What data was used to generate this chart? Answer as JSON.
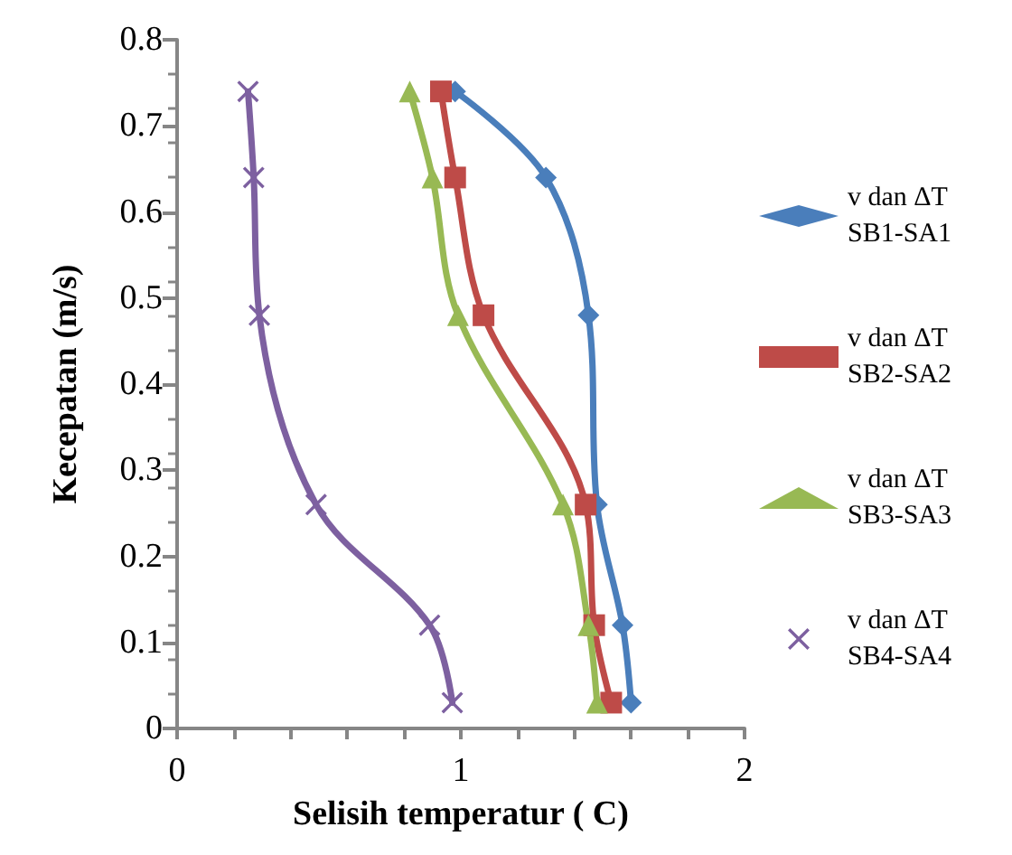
{
  "chart_data": {
    "type": "line",
    "xlabel": "Selisih temperatur ( C)",
    "ylabel": "Kecepatan (m/s)",
    "xlim": [
      0,
      2
    ],
    "xticks": [
      0,
      {
        "value": 0.2,
        "label": null
      },
      {
        "value": 0.4,
        "label": null
      },
      {
        "value": 0.6,
        "label": null
      },
      {
        "value": 0.8,
        "label": null
      },
      1,
      {
        "value": 1.2,
        "label": null
      },
      {
        "value": 1.4,
        "label": null
      },
      {
        "value": 1.6,
        "label": null
      },
      {
        "value": 1.8,
        "label": null
      },
      2
    ],
    "ylim": [
      0,
      0.8
    ],
    "yticks": [
      0,
      0.1,
      0.2,
      0.3,
      0.4,
      0.5,
      0.6,
      0.7,
      0.8
    ],
    "grid": false,
    "legend": "right",
    "series": [
      {
        "name": "v dan ΔT SB1-SA1",
        "color": "#4a7ebb",
        "marker": "diamond",
        "x": [
          0.98,
          1.3,
          1.45,
          1.48,
          1.57,
          1.6
        ],
        "values": [
          0.74,
          0.64,
          0.48,
          0.26,
          0.12,
          0.03
        ]
      },
      {
        "name": "v dan ΔT SB2-SA2",
        "color": "#be4b48",
        "marker": "square",
        "x": [
          0.93,
          0.98,
          1.08,
          1.44,
          1.47,
          1.53
        ],
        "values": [
          0.74,
          0.64,
          0.48,
          0.26,
          0.12,
          0.03
        ]
      },
      {
        "name": "v dan ΔT SB3-SA3",
        "color": "#98b954",
        "marker": "triangle",
        "x": [
          0.82,
          0.9,
          0.99,
          1.36,
          1.45,
          1.48
        ],
        "values": [
          0.74,
          0.64,
          0.48,
          0.26,
          0.12,
          0.03
        ]
      },
      {
        "name": "v dan ΔT SB4-SA4",
        "color": "#7d60a0",
        "marker": "cross",
        "x": [
          0.25,
          0.27,
          0.29,
          0.49,
          0.89,
          0.97
        ],
        "values": [
          0.74,
          0.64,
          0.48,
          0.26,
          0.12,
          0.03
        ]
      }
    ]
  }
}
